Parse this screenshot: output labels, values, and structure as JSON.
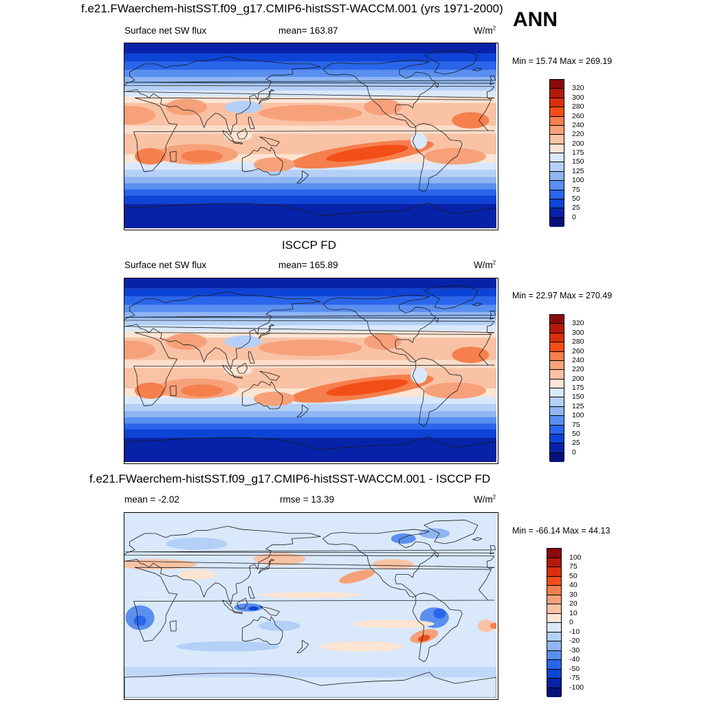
{
  "season": "ANN",
  "panels": [
    {
      "id": "model",
      "title": "f.e21.FWaerchem-histSST.f09_g17.CMIP6-histSST-WACCM.001 (yrs 1971-2000)",
      "left_label": "Surface net SW flux",
      "center_label": "mean= 163.87",
      "units_base": "W/m",
      "units_exp": "2",
      "minmax": "Min =  15.74 Max = 269.19",
      "colorbar_labels": [
        "320",
        "300",
        "280",
        "260",
        "240",
        "220",
        "200",
        "175",
        "150",
        "125",
        "100",
        "75",
        "50",
        "25",
        "0"
      ],
      "colors": [
        "#8a0b0b",
        "#b21a0c",
        "#d9300c",
        "#f24e17",
        "#f57f4d",
        "#f7a17a",
        "#f9c2a5",
        "#fde4d3",
        "#d9e8fb",
        "#b5d0f7",
        "#8fb5f3",
        "#5a8ff0",
        "#2a66eb",
        "#0d44d6",
        "#0722a8",
        "#06117a"
      ]
    },
    {
      "id": "obs",
      "title": "ISCCP FD",
      "left_label": "Surface net SW flux",
      "center_label": "mean= 165.89",
      "units_base": "W/m",
      "units_exp": "2",
      "minmax": "Min =  22.97 Max = 270.49",
      "colorbar_labels": [
        "320",
        "300",
        "280",
        "260",
        "240",
        "220",
        "200",
        "175",
        "150",
        "125",
        "100",
        "75",
        "50",
        "25",
        "0"
      ],
      "colors": [
        "#8a0b0b",
        "#b21a0c",
        "#d9300c",
        "#f24e17",
        "#f57f4d",
        "#f7a17a",
        "#f9c2a5",
        "#fde4d3",
        "#d9e8fb",
        "#b5d0f7",
        "#8fb5f3",
        "#5a8ff0",
        "#2a66eb",
        "#0d44d6",
        "#0722a8",
        "#06117a"
      ]
    },
    {
      "id": "diff",
      "title": "f.e21.FWaerchem-histSST.f09_g17.CMIP6-histSST-WACCM.001 - ISCCP FD",
      "left_label": "mean =  -2.02",
      "center_label": "rmse =  13.39",
      "units_base": "W/m",
      "units_exp": "2",
      "minmax": "Min = -66.14 Max =  44.13",
      "colorbar_labels": [
        "100",
        "75",
        "50",
        "40",
        "30",
        "20",
        "10",
        "0",
        "-10",
        "-20",
        "-30",
        "-40",
        "-50",
        "-75",
        "-100"
      ],
      "colors": [
        "#8a0b0b",
        "#b21a0c",
        "#d9300c",
        "#f24e17",
        "#f57f4d",
        "#f7a17a",
        "#f9c2a5",
        "#fde4d3",
        "#d9e8fb",
        "#b5d0f7",
        "#8fb5f3",
        "#5a8ff0",
        "#2a66eb",
        "#0d44d6",
        "#0722a8",
        "#06117a"
      ]
    }
  ]
}
